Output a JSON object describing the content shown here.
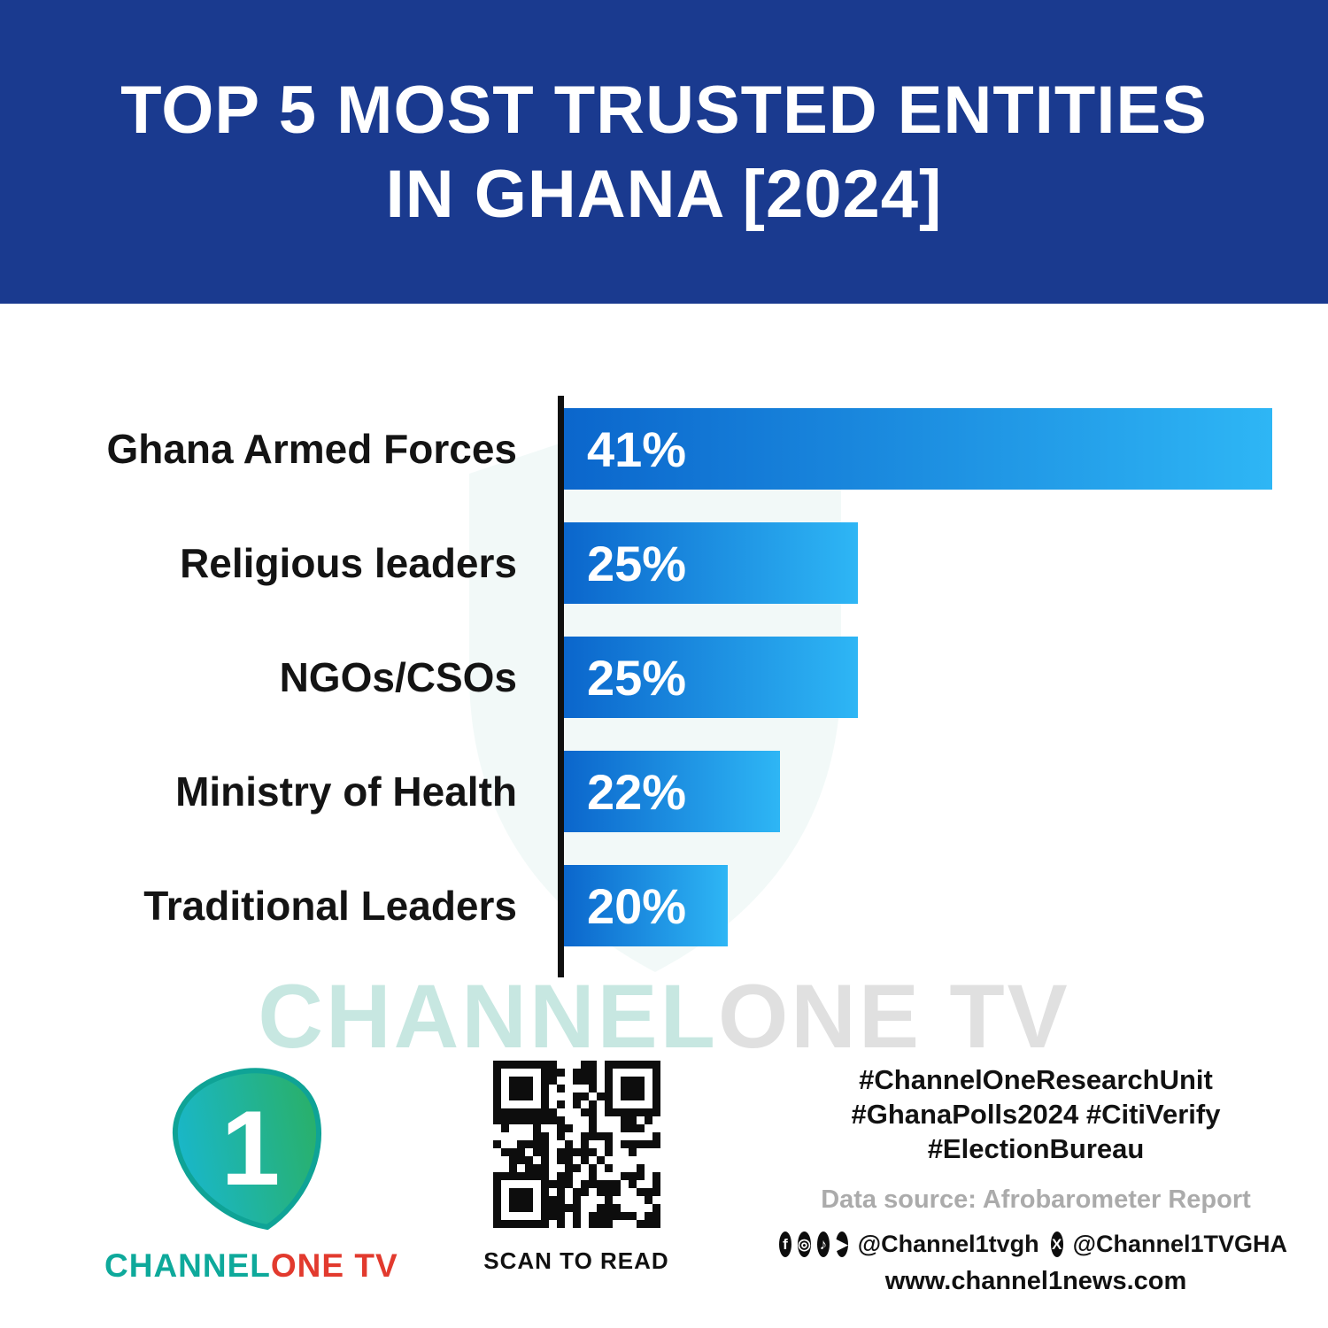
{
  "header": {
    "title_line1": "TOP 5 MOST TRUSTED ENTITIES",
    "title_line2": "IN GHANA [2024]"
  },
  "chart_data": {
    "type": "bar",
    "orientation": "horizontal",
    "title": "TOP 5 MOST TRUSTED ENTITIES IN GHANA [2024]",
    "categories": [
      "Ghana Armed Forces",
      "Religious leaders",
      "NGOs/CSOs",
      "Ministry of Health",
      "Traditional Leaders"
    ],
    "values": [
      41,
      25,
      25,
      22,
      20
    ],
    "value_labels": [
      "41%",
      "25%",
      "25%",
      "22%",
      "20%"
    ],
    "unit": "%",
    "xlim": [
      0,
      44
    ],
    "grid": false,
    "legend": false,
    "bar_gradient": [
      "#0b66cc",
      "#2eb6f5"
    ],
    "display_widths_pct": [
      92.7,
      38.5,
      38.5,
      28.3,
      21.4
    ],
    "source": "Afrobarometer Report"
  },
  "watermark": {
    "part1": "CHANNEL",
    "part2": "ONE TV"
  },
  "footer": {
    "logo_digit": "1",
    "brand_part1": "CHANNEL",
    "brand_part2": "ONE TV",
    "qr_caption": "SCAN TO READ",
    "hashtags_line1": "#ChannelOneResearchUnit",
    "hashtags_line2": "#GhanaPolls2024 #CitiVerify",
    "hashtags_line3": "#ElectionBureau",
    "data_source": "Data source: Afrobarometer Report",
    "social_handle1": "@Channel1tvgh",
    "social_handle2": "@Channel1TVGHA",
    "website": "www.channel1news.com"
  },
  "icons": {
    "facebook": "f",
    "instagram": "◎",
    "tiktok": "♪",
    "youtube": "▶",
    "x": "X"
  },
  "colors": {
    "header_bg": "#1a3a8f",
    "bar_start": "#0b66cc",
    "bar_end": "#2eb6f5",
    "brand_teal": "#0ea99b",
    "brand_red": "#e23a2e",
    "watermark_teal": "#c7e7e1",
    "watermark_gray": "#e0e0e0"
  }
}
